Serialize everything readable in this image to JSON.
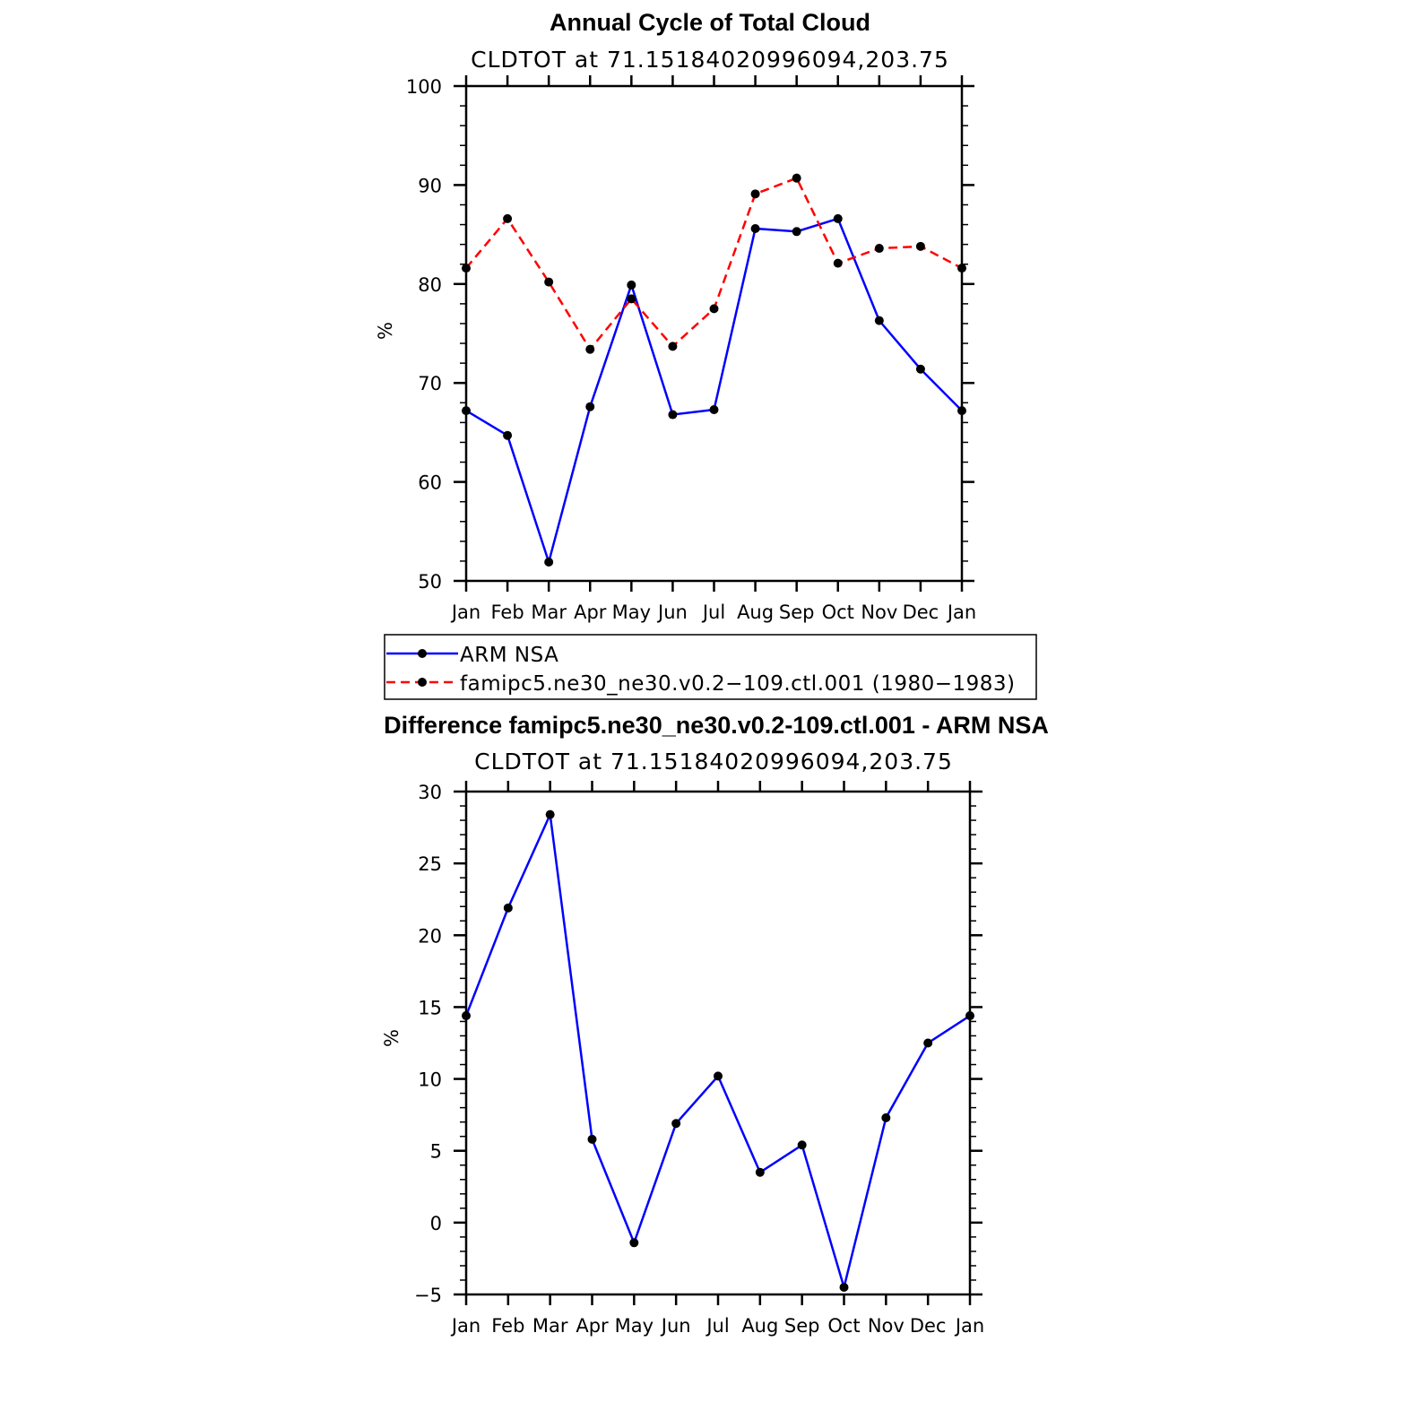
{
  "chart_data": [
    {
      "type": "line",
      "title": "Annual Cycle of Total Cloud",
      "subtitle": "CLDTOT  at  71.15184020996094,203.75",
      "xlabel": "",
      "ylabel": "%",
      "categories": [
        "Jan",
        "Feb",
        "Mar",
        "Apr",
        "May",
        "Jun",
        "Jul",
        "Aug",
        "Sep",
        "Oct",
        "Nov",
        "Dec",
        "Jan"
      ],
      "ylim": [
        50,
        100
      ],
      "yticks": [
        50,
        60,
        70,
        80,
        90,
        100
      ],
      "grid": false,
      "series": [
        {
          "name": "ARM  NSA",
          "color": "#0000ff",
          "style": "solid",
          "values": [
            67.2,
            64.7,
            51.9,
            67.6,
            79.9,
            66.8,
            67.3,
            85.6,
            85.3,
            86.6,
            76.3,
            71.4,
            67.2
          ]
        },
        {
          "name": "famipc5.ne30_ne30.v0.2−109.ctl.001  (1980−1983)",
          "color": "#ff0000",
          "style": "dashed",
          "values": [
            81.6,
            86.6,
            80.2,
            73.4,
            78.5,
            73.7,
            77.5,
            89.1,
            90.7,
            82.1,
            83.6,
            83.8,
            81.6
          ]
        }
      ],
      "legend": "below"
    },
    {
      "type": "line",
      "title": "Difference famipc5.ne30_ne30.v0.2-109.ctl.001 - ARM NSA",
      "subtitle": "CLDTOT  at  71.15184020996094,203.75",
      "xlabel": "",
      "ylabel": "%",
      "categories": [
        "Jan",
        "Feb",
        "Mar",
        "Apr",
        "May",
        "Jun",
        "Jul",
        "Aug",
        "Sep",
        "Oct",
        "Nov",
        "Dec",
        "Jan"
      ],
      "ylim": [
        -5,
        30
      ],
      "yticks": [
        -5,
        0,
        5,
        10,
        15,
        20,
        25,
        30
      ],
      "ytick_labels": [
        "−5",
        "0",
        "5",
        "10",
        "15",
        "20",
        "25",
        "30"
      ],
      "grid": false,
      "series": [
        {
          "name": "difference",
          "color": "#0000ff",
          "style": "solid",
          "values": [
            14.4,
            21.9,
            28.4,
            5.8,
            -1.4,
            6.9,
            10.2,
            3.5,
            5.4,
            -4.5,
            7.3,
            12.5,
            14.4
          ]
        }
      ]
    }
  ]
}
